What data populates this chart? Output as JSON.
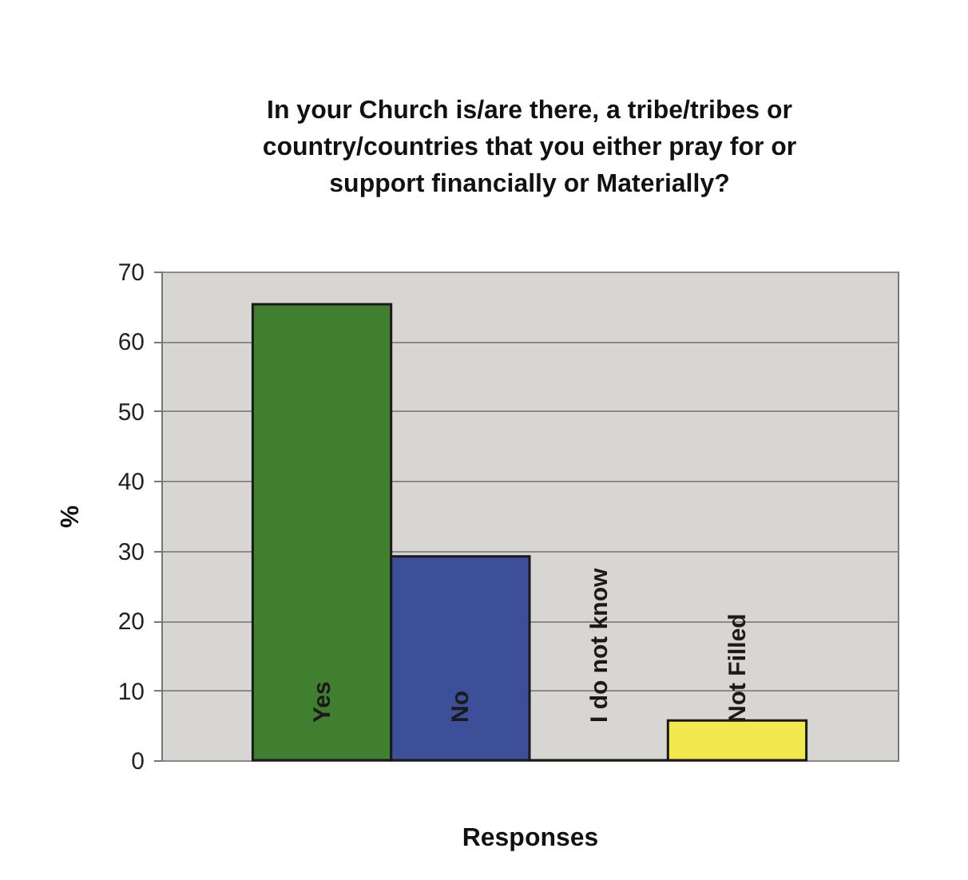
{
  "chart_data": {
    "type": "bar",
    "title": "In your Church is/are there, a tribe/tribes or country/countries that you either pray for or support financially or Materially?",
    "xlabel": "Responses",
    "ylabel": "%",
    "categories": [
      "Yes",
      "No",
      "I do not know",
      "Not Filled"
    ],
    "values": [
      65.3,
      29.2,
      0,
      5.7
    ],
    "colors": [
      "#3f7f2f",
      "#3c4f98",
      "#1a1a1a",
      "#f2e94e"
    ],
    "ylim": [
      0,
      70
    ],
    "yticks": [
      0,
      10,
      20,
      30,
      40,
      50,
      60,
      70
    ],
    "grid": "y",
    "legend": false
  }
}
